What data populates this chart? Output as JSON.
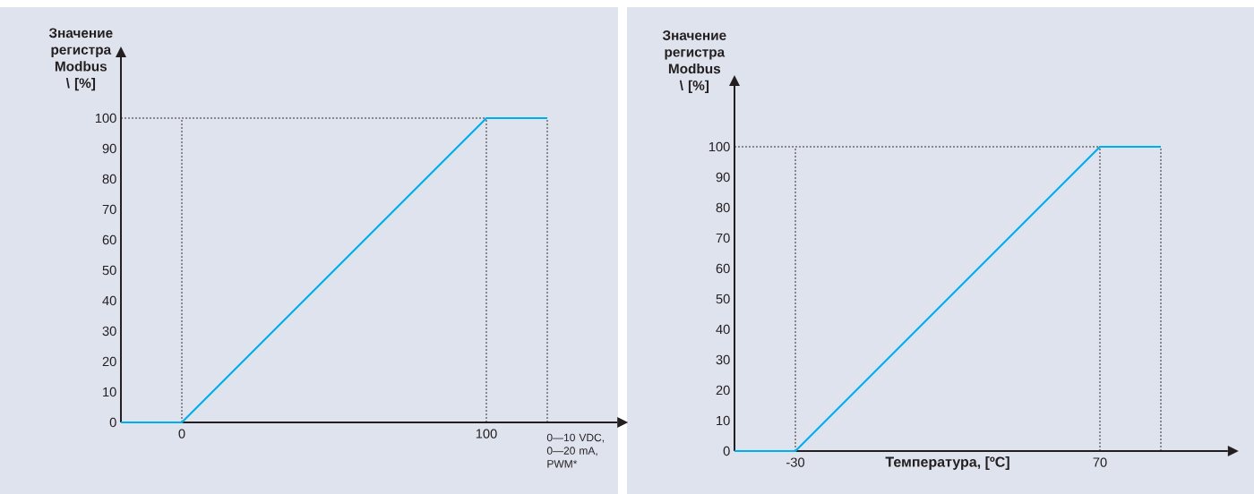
{
  "chart_data": [
    {
      "type": "line",
      "ylabel": "Значение регистра Modbus \\ [%]",
      "xlabel": "0—10 VDC, 0—20 mA, PWM*",
      "x": [
        -20,
        0,
        100,
        120
      ],
      "series": [
        {
          "color": "#00aeef",
          "values": [
            0,
            0,
            100,
            100
          ]
        }
      ],
      "xlim": [
        -20,
        143
      ],
      "ylim": [
        0,
        120
      ],
      "xticks": [
        0,
        100
      ],
      "yticks": [
        0,
        10,
        20,
        30,
        40,
        50,
        60,
        70,
        80,
        90,
        100
      ],
      "ref_lines": [
        {
          "axis": "x",
          "value": 0,
          "color": "#231f20",
          "line_style": "dotted"
        },
        {
          "axis": "x",
          "value": 100,
          "color": "#231f20",
          "line_style": "dotted"
        },
        {
          "axis": "x",
          "value": 120,
          "color": "#231f20",
          "line_style": "dotted"
        },
        {
          "axis": "y",
          "value": 100,
          "color": "#231f20",
          "line_style": "dotted"
        }
      ]
    },
    {
      "type": "line",
      "ylabel": "Значение регистра Modbus \\ [%]",
      "xlabel": "Температура, [ºC]",
      "x": [
        -50,
        -30,
        70,
        90
      ],
      "series": [
        {
          "color": "#00aeef",
          "values": [
            0,
            0,
            100,
            100
          ]
        }
      ],
      "xlim": [
        -50,
        112
      ],
      "ylim": [
        0,
        120
      ],
      "xticks": [
        -30,
        70
      ],
      "yticks": [
        0,
        10,
        20,
        30,
        40,
        50,
        60,
        70,
        80,
        90,
        100
      ],
      "ref_lines": [
        {
          "axis": "x",
          "value": -30,
          "color": "#231f20",
          "line_style": "dotted"
        },
        {
          "axis": "x",
          "value": 70,
          "color": "#231f20",
          "line_style": "dotted"
        },
        {
          "axis": "x",
          "value": 90,
          "color": "#231f20",
          "line_style": "dotted"
        },
        {
          "axis": "y",
          "value": 100,
          "color": "#231f20",
          "line_style": "dotted"
        }
      ]
    }
  ]
}
